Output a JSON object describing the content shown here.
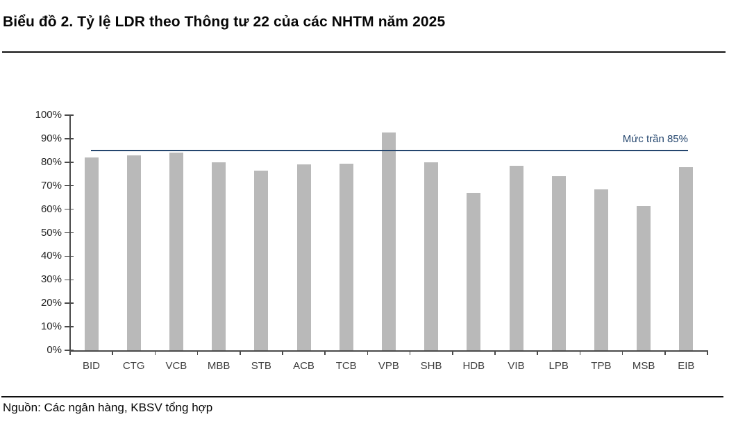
{
  "header": {
    "title": "Biểu đồ 2. Tỷ lệ LDR theo Thông tư 22 của các NHTM năm 2025"
  },
  "footer": {
    "source": "Nguồn: Các ngân hàng, KBSV tổng hợp"
  },
  "chart_data": {
    "type": "bar",
    "title": "Biểu đồ 2. Tỷ lệ LDR theo Thông tư 22 của các NHTM năm 2025",
    "categories": [
      "BID",
      "CTG",
      "VCB",
      "MBB",
      "STB",
      "ACB",
      "TCB",
      "VPB",
      "SHB",
      "HDB",
      "VIB",
      "LPB",
      "TPB",
      "MSB",
      "EIB"
    ],
    "values": [
      82,
      83,
      84,
      80,
      76.5,
      79,
      79.5,
      92.5,
      80,
      67,
      78.5,
      74,
      68.5,
      61.5,
      78
    ],
    "xlabel": "",
    "ylabel": "",
    "ylim": [
      0,
      100
    ],
    "ytick_step": 10,
    "ytick_suffix": "%",
    "grid": false,
    "legend": null,
    "bar_color": "#b9b9b9",
    "reference_line": {
      "value": 85,
      "label": "Mức trần 85%",
      "color": "#24466e"
    }
  }
}
